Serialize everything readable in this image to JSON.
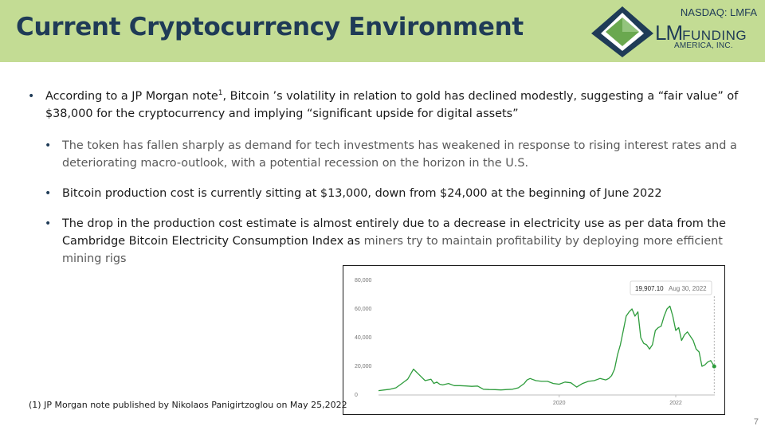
{
  "slide": {
    "title": "Current Cryptocurrency Environment",
    "ticker": "NASDAQ: LMFA",
    "logo": {
      "lm": "LM",
      "funding": "FUNDING",
      "sub": "AMERICA, INC."
    },
    "page_number": "7"
  },
  "bullets": {
    "main": {
      "part1": "According to a JP Morgan note",
      "sup": "1",
      "part2": ", Bitcoin ’s volatility in relation to gold has declined modestly, suggesting a “fair value” of $38,000 for the cryptocurrency and implying “significant upside for digital assets”"
    },
    "sub1": "The token has fallen sharply as demand for tech investments has weakened in response to rising interest rates and a deteriorating macro-outlook, with a potential recession on the horizon in the U.S.",
    "sub2": "Bitcoin production cost is currently sitting at $13,000, down from $24,000 at the beginning of June 2022",
    "sub3": {
      "part1": "The drop in the production cost estimate is almost entirely due to a decrease in electricity use as per data from the Cambridge Bitcoin Electricity Consumption Index as",
      "part2": " miners try to maintain profitability by deploying more efficient mining rigs"
    }
  },
  "footnote": "(1) JP Morgan note published by Nikolaos Panigirtzoglou on May 25,2022",
  "chart_data": {
    "type": "line",
    "ylim": [
      0,
      80000
    ],
    "y_ticks": [
      0,
      20000,
      40000,
      60000,
      80000
    ],
    "y_tick_labels": [
      "0",
      "20,000",
      "40,000",
      "60,000",
      "80,000"
    ],
    "xlim": [
      2016.9,
      2022.67
    ],
    "x_ticks": [
      2020,
      2022
    ],
    "x_tick_labels": [
      "2020",
      "2022"
    ],
    "line_color": "#2e9c3c",
    "grid": false,
    "tooltip": {
      "value": "19,907.10",
      "date": "Aug 30, 2022"
    },
    "x": [
      2016.9,
      2017.0,
      2017.1,
      2017.2,
      2017.3,
      2017.4,
      2017.5,
      2017.6,
      2017.7,
      2017.8,
      2017.85,
      2017.9,
      2017.95,
      2018.0,
      2018.05,
      2018.1,
      2018.2,
      2018.3,
      2018.4,
      2018.5,
      2018.6,
      2018.7,
      2018.8,
      2018.9,
      2019.0,
      2019.1,
      2019.2,
      2019.3,
      2019.4,
      2019.45,
      2019.5,
      2019.6,
      2019.7,
      2019.8,
      2019.9,
      2020.0,
      2020.1,
      2020.2,
      2020.3,
      2020.4,
      2020.5,
      2020.6,
      2020.7,
      2020.8,
      2020.85,
      2020.9,
      2020.95,
      2021.0,
      2021.05,
      2021.1,
      2021.15,
      2021.2,
      2021.25,
      2021.3,
      2021.35,
      2021.4,
      2021.45,
      2021.5,
      2021.55,
      2021.6,
      2021.65,
      2021.7,
      2021.75,
      2021.8,
      2021.85,
      2021.9,
      2021.95,
      2022.0,
      2022.05,
      2022.1,
      2022.15,
      2022.2,
      2022.25,
      2022.3,
      2022.35,
      2022.4,
      2022.45,
      2022.5,
      2022.55,
      2022.6,
      2022.66
    ],
    "values": [
      3000,
      3500,
      4000,
      5000,
      8000,
      11000,
      18000,
      14000,
      10000,
      11000,
      8000,
      9000,
      7500,
      7000,
      7500,
      8000,
      6500,
      6500,
      6300,
      6000,
      6200,
      4000,
      3800,
      3700,
      3500,
      3800,
      4000,
      5000,
      8000,
      10500,
      11500,
      10000,
      9500,
      9500,
      8000,
      7500,
      9000,
      8500,
      5500,
      8000,
      9500,
      10000,
      11500,
      10500,
      11500,
      13500,
      18000,
      28000,
      35000,
      45000,
      55000,
      58000,
      60000,
      55000,
      58000,
      40000,
      36000,
      35000,
      32000,
      35000,
      45000,
      47000,
      48000,
      55000,
      60000,
      62000,
      55000,
      45000,
      47000,
      38000,
      42000,
      44000,
      41000,
      38000,
      32000,
      30000,
      20000,
      21000,
      23000,
      24000,
      19907
    ]
  }
}
